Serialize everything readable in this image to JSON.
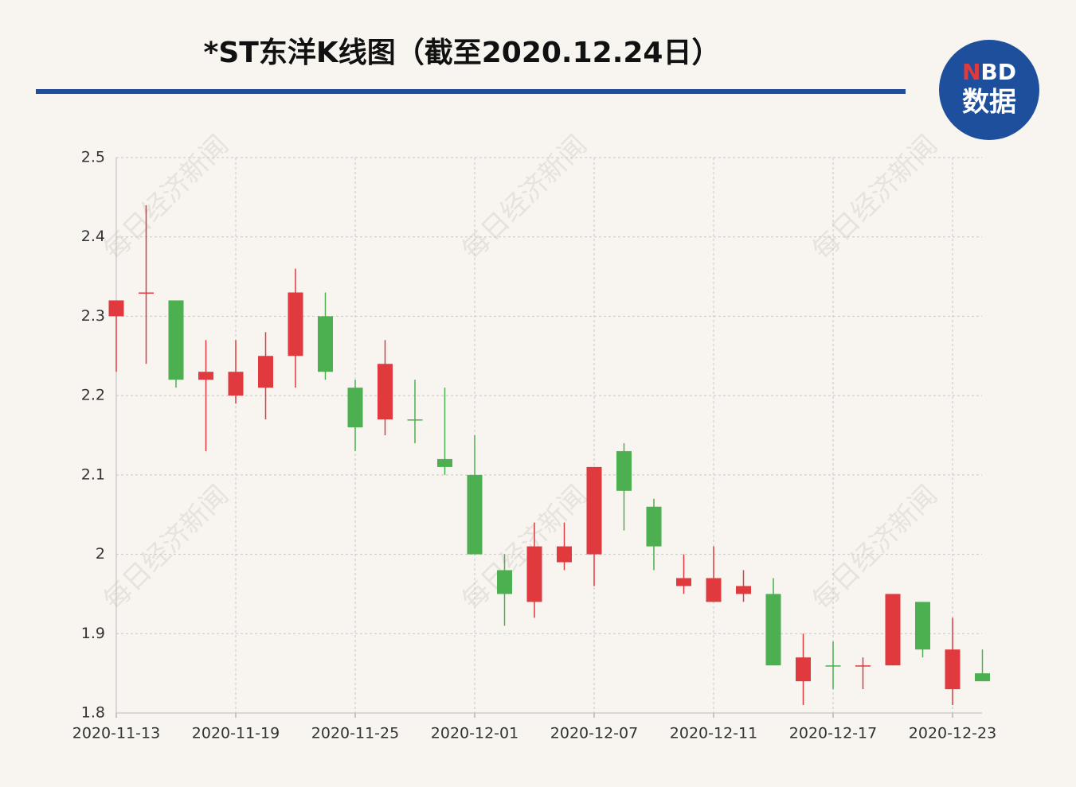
{
  "header": {
    "title": "*ST东洋K线图（截至2020.12.24日）",
    "logo": {
      "top_red": "N",
      "top_white": "BD",
      "bottom": "数据"
    },
    "watermark": "每日经济新闻"
  },
  "chart_data": {
    "type": "candlestick",
    "categories": [
      "2020-11-13",
      null,
      null,
      null,
      "2020-11-19",
      null,
      null,
      null,
      "2020-11-25",
      null,
      null,
      null,
      "2020-12-01",
      null,
      null,
      null,
      "2020-12-07",
      null,
      null,
      null,
      "2020-12-11",
      null,
      null,
      null,
      "2020-12-17",
      null,
      null,
      null,
      "2020-12-23",
      null
    ],
    "open": [
      2.3,
      2.33,
      2.32,
      2.22,
      2.2,
      2.21,
      2.25,
      2.3,
      2.21,
      2.17,
      2.17,
      2.12,
      2.1,
      1.98,
      1.94,
      1.99,
      2.0,
      2.13,
      2.06,
      1.96,
      1.94,
      1.95,
      1.95,
      1.84,
      1.86,
      1.86,
      1.86,
      1.94,
      1.83,
      1.85
    ],
    "high": [
      2.32,
      2.44,
      2.32,
      2.27,
      2.27,
      2.28,
      2.36,
      2.33,
      2.22,
      2.27,
      2.22,
      2.21,
      2.15,
      2.0,
      2.04,
      2.04,
      2.11,
      2.14,
      2.07,
      2.0,
      2.01,
      1.98,
      1.97,
      1.9,
      1.89,
      1.87,
      1.95,
      1.94,
      1.92,
      1.88
    ],
    "low": [
      2.23,
      2.24,
      2.21,
      2.13,
      2.19,
      2.17,
      2.21,
      2.22,
      2.13,
      2.15,
      2.14,
      2.1,
      2.0,
      1.91,
      1.92,
      1.98,
      1.96,
      2.03,
      1.98,
      1.95,
      1.94,
      1.94,
      1.86,
      1.81,
      1.83,
      1.83,
      1.86,
      1.87,
      1.81,
      1.84
    ],
    "close": [
      2.32,
      2.33,
      2.22,
      2.23,
      2.23,
      2.25,
      2.33,
      2.23,
      2.16,
      2.24,
      2.17,
      2.11,
      2.0,
      1.95,
      2.01,
      2.01,
      2.11,
      2.08,
      2.01,
      1.97,
      1.97,
      1.96,
      1.86,
      1.87,
      1.86,
      1.86,
      1.95,
      1.88,
      1.88,
      1.84
    ],
    "up_color": "#e0393e",
    "down_color": "#4caf50",
    "ylim": [
      1.8,
      2.5
    ],
    "yticks": [
      1.8,
      1.9,
      2,
      2.1,
      2.2,
      2.3,
      2.4,
      2.5
    ],
    "grid": true
  }
}
